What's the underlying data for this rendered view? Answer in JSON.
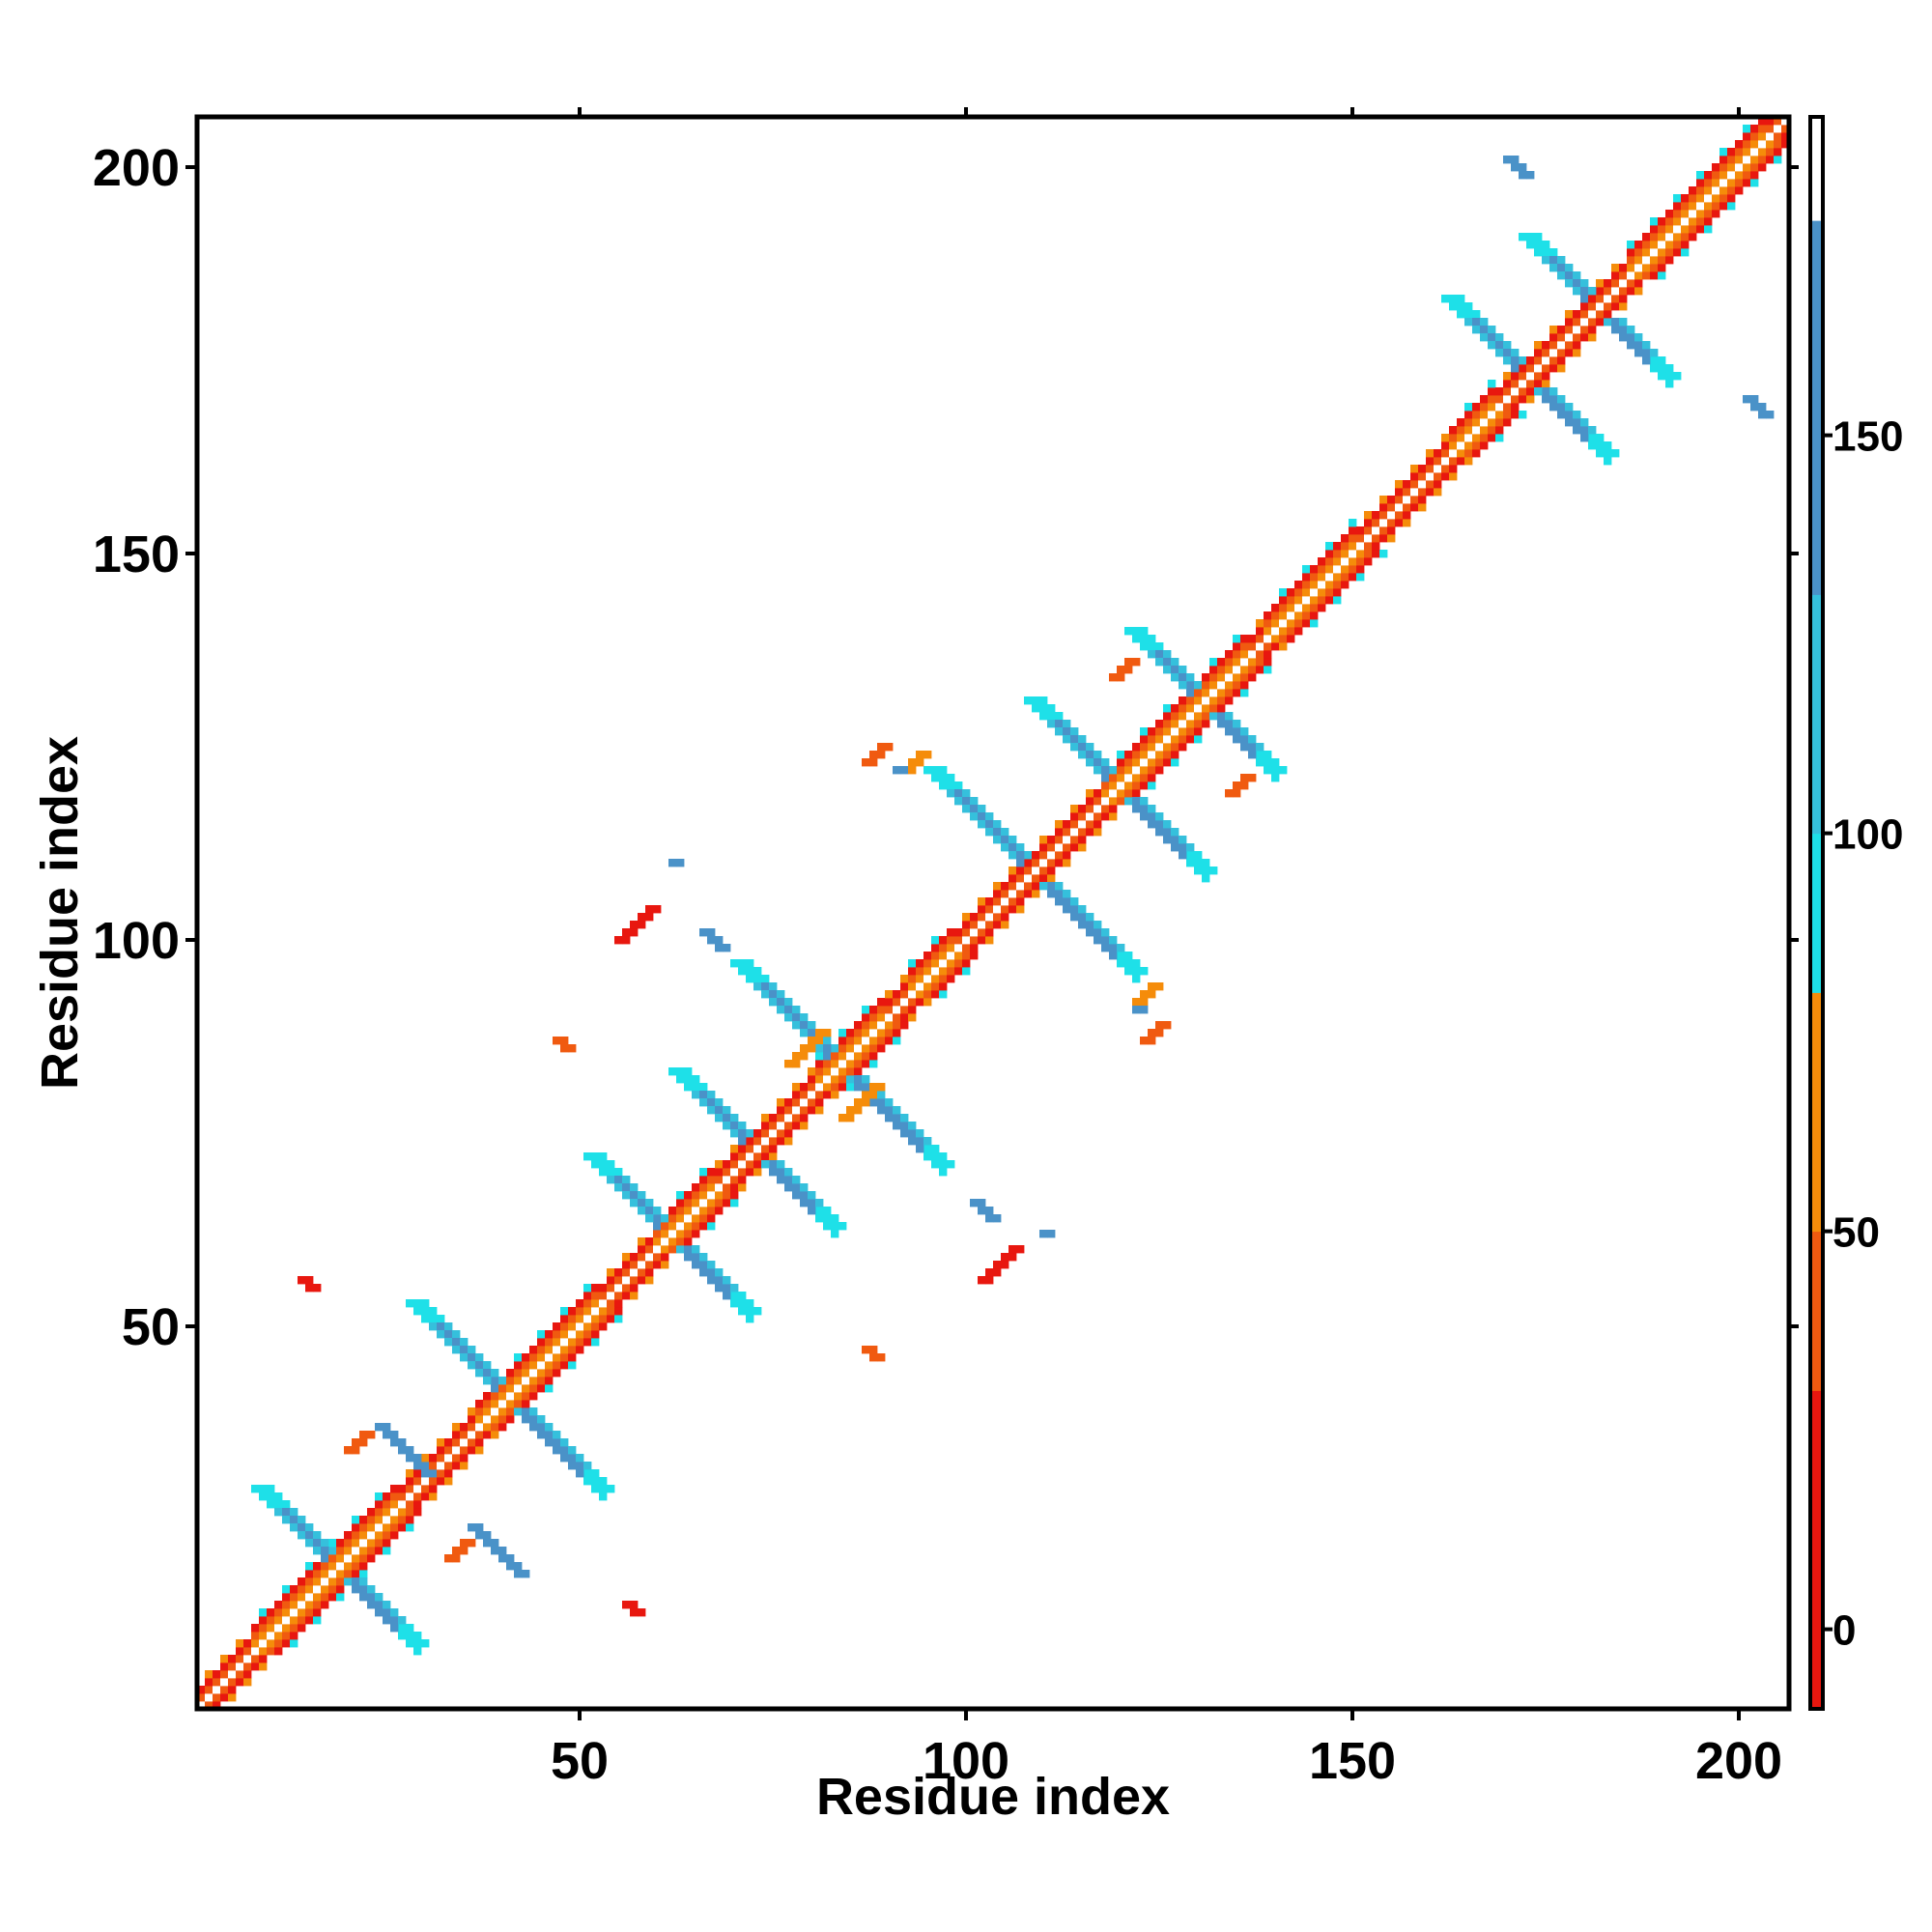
{
  "chart_data": {
    "type": "heatmap",
    "title": "",
    "xlabel": "Residue index",
    "ylabel": "Residue index",
    "xlim": [
      1,
      206
    ],
    "ylim": [
      1,
      206
    ],
    "x_ticks": [
      50,
      100,
      150,
      200
    ],
    "y_ticks": [
      50,
      100,
      150,
      200
    ],
    "colorbar": {
      "range": [
        -10,
        190
      ],
      "ticks": [
        0,
        50,
        100,
        150
      ],
      "bands": [
        {
          "from": -10,
          "to": 30,
          "color": "#e8170f"
        },
        {
          "from": 30,
          "to": 50,
          "color": "#f05a10"
        },
        {
          "from": 50,
          "to": 80,
          "color": "#f58c0a"
        },
        {
          "from": 80,
          "to": 100,
          "color": "#1ee0e8"
        },
        {
          "from": 100,
          "to": 130,
          "color": "#35c0dc"
        },
        {
          "from": 130,
          "to": 177,
          "color": "#4a92c8"
        },
        {
          "from": 177,
          "to": 190,
          "color": "#ffffff"
        }
      ]
    },
    "diagonal": {
      "from": 1,
      "to": 206
    },
    "helices": [
      [
        8,
        26
      ],
      [
        37,
        52
      ],
      [
        60,
        67
      ],
      [
        81,
        89
      ],
      [
        93,
        98
      ],
      [
        118,
        136
      ],
      [
        139,
        150
      ],
      [
        163,
        168
      ],
      [
        186,
        203
      ]
    ],
    "crosses": [
      {
        "center": [
          19,
          19
        ],
        "arm": 10
      },
      {
        "center": [
          41,
          41
        ],
        "arm": 12
      },
      {
        "center": [
          62,
          62
        ],
        "arm": 10
      },
      {
        "center": [
          73,
          73
        ],
        "arm": 10
      },
      {
        "center": [
          84,
          84
        ],
        "arm": 13
      },
      {
        "center": [
          109,
          109
        ],
        "arm": 13
      },
      {
        "center": [
          120,
          120
        ],
        "arm": 11
      },
      {
        "center": [
          131,
          131
        ],
        "arm": 9
      },
      {
        "center": [
          173,
          173
        ],
        "arm": 10
      },
      {
        "center": [
          182,
          182
        ],
        "arm": 9
      }
    ],
    "off_diagonal": [
      {
        "x": 24,
        "y": 37,
        "len": 7,
        "dir": "down",
        "color": "#4a92c8"
      },
      {
        "x": 36,
        "y": 24,
        "len": 7,
        "dir": "down",
        "color": "#4a92c8"
      },
      {
        "x": 55,
        "y": 100,
        "len": 5,
        "dir": "up",
        "color": "#e8170f"
      },
      {
        "x": 102,
        "y": 56,
        "len": 5,
        "dir": "up",
        "color": "#e8170f"
      },
      {
        "x": 77,
        "y": 84,
        "len": 5,
        "dir": "up",
        "color": "#f58c0a"
      },
      {
        "x": 84,
        "y": 77,
        "len": 5,
        "dir": "up",
        "color": "#f58c0a"
      },
      {
        "x": 20,
        "y": 34,
        "len": 3,
        "dir": "up",
        "color": "#f05a10"
      },
      {
        "x": 33,
        "y": 20,
        "len": 3,
        "dir": "up",
        "color": "#f05a10"
      },
      {
        "x": 201,
        "y": 170,
        "len": 3,
        "dir": "down",
        "color": "#4a92c8"
      },
      {
        "x": 170,
        "y": 201,
        "len": 3,
        "dir": "down",
        "color": "#4a92c8"
      },
      {
        "x": 119,
        "y": 134,
        "len": 3,
        "dir": "up",
        "color": "#f05a10"
      },
      {
        "x": 134,
        "y": 119,
        "len": 3,
        "dir": "up",
        "color": "#f05a10"
      },
      {
        "x": 92,
        "y": 122,
        "len": 3,
        "dir": "up",
        "color": "#f58c0a"
      },
      {
        "x": 122,
        "y": 92,
        "len": 3,
        "dir": "up",
        "color": "#f58c0a"
      },
      {
        "x": 91,
        "y": 122,
        "len": 1,
        "dir": "up",
        "color": "#4a92c8"
      },
      {
        "x": 122,
        "y": 91,
        "len": 1,
        "dir": "up",
        "color": "#4a92c8"
      },
      {
        "x": 87,
        "y": 123,
        "len": 3,
        "dir": "up",
        "color": "#f05a10"
      },
      {
        "x": 123,
        "y": 87,
        "len": 3,
        "dir": "up",
        "color": "#f05a10"
      },
      {
        "x": 62,
        "y": 110,
        "len": 1,
        "dir": "up",
        "color": "#4a92c8"
      },
      {
        "x": 110,
        "y": 62,
        "len": 1,
        "dir": "up",
        "color": "#4a92c8"
      },
      {
        "x": 66,
        "y": 101,
        "len": 3,
        "dir": "down",
        "color": "#4a92c8"
      },
      {
        "x": 101,
        "y": 66,
        "len": 3,
        "dir": "down",
        "color": "#4a92c8"
      },
      {
        "x": 14,
        "y": 56,
        "len": 2,
        "dir": "down",
        "color": "#e8170f"
      },
      {
        "x": 56,
        "y": 14,
        "len": 2,
        "dir": "down",
        "color": "#e8170f"
      },
      {
        "x": 87,
        "y": 47,
        "len": 2,
        "dir": "down",
        "color": "#f05a10"
      },
      {
        "x": 47,
        "y": 87,
        "len": 2,
        "dir": "down",
        "color": "#f05a10"
      }
    ]
  }
}
